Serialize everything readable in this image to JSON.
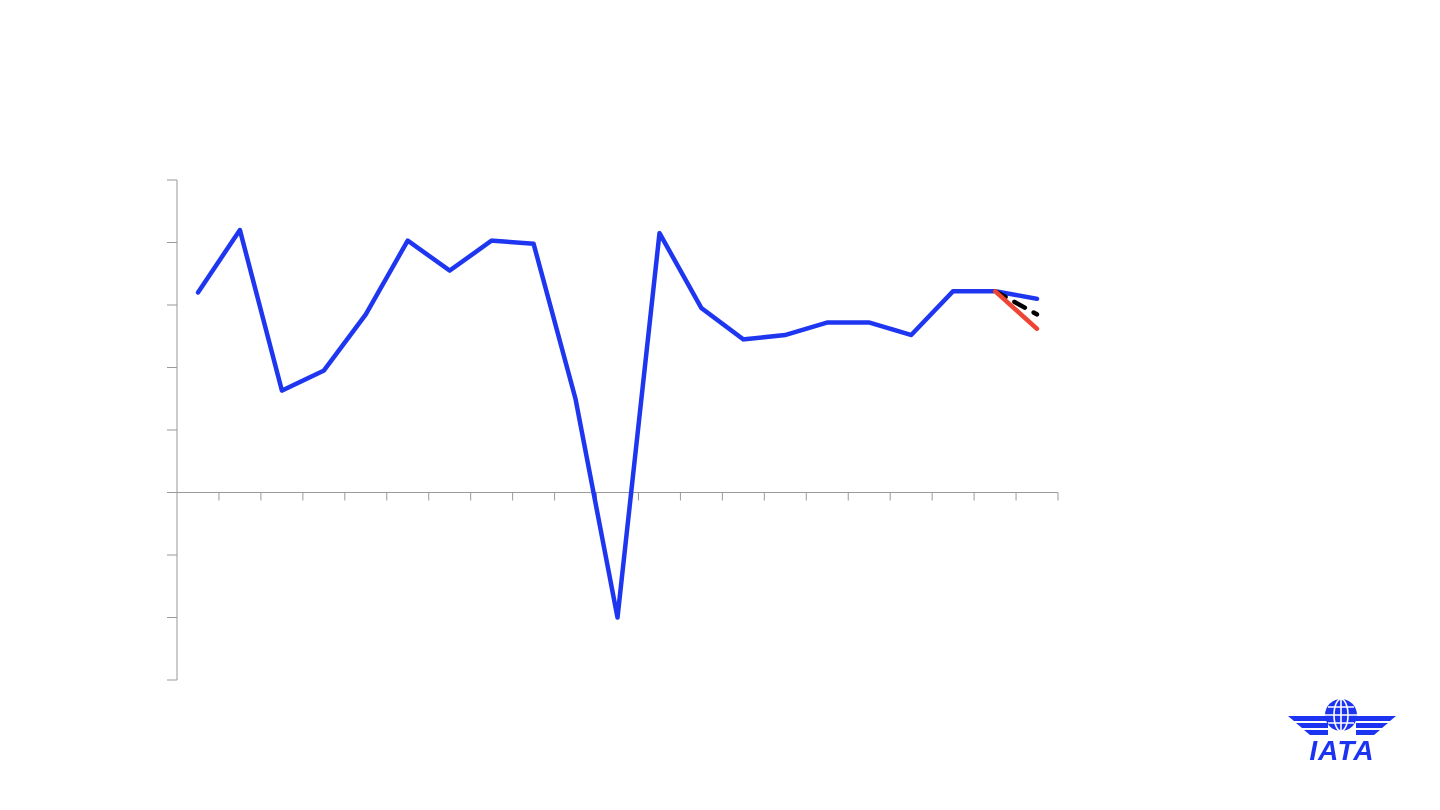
{
  "colors": {
    "axis": "#9a9a9a",
    "brand": "#1c33f2"
  },
  "chart_data": {
    "type": "line",
    "title": "",
    "xlabel": "",
    "ylabel": "",
    "ylim": [
      -3,
      5
    ],
    "grid": false,
    "x_tick_count": 21,
    "y_tick_values": [
      -3,
      -2,
      -1,
      0,
      1,
      2,
      3,
      4,
      5
    ],
    "x": [
      1,
      2,
      3,
      4,
      5,
      6,
      7,
      8,
      9,
      10,
      11,
      12,
      13,
      14,
      15,
      16,
      17,
      18,
      19,
      20,
      21
    ],
    "series": [
      {
        "color": "#1f36f0",
        "values": [
          3.2,
          4.2,
          1.63,
          1.95,
          2.85,
          4.03,
          3.55,
          4.03,
          3.98,
          1.5,
          -2.0,
          4.15,
          2.95,
          2.45,
          2.52,
          2.72,
          2.72,
          2.52,
          3.22,
          3.22,
          3.1
        ],
        "dash": "solid"
      },
      {
        "color": "#000000",
        "x": [
          20,
          21
        ],
        "values": [
          3.22,
          2.85
        ],
        "dash": "dashed"
      },
      {
        "color": "#ee4433",
        "x": [
          20,
          21
        ],
        "values": [
          3.22,
          2.62
        ],
        "dash": "solid"
      }
    ]
  },
  "logo": {
    "text": "IATA",
    "color": "#1c33f2",
    "icon": "globe-wings-icon"
  }
}
